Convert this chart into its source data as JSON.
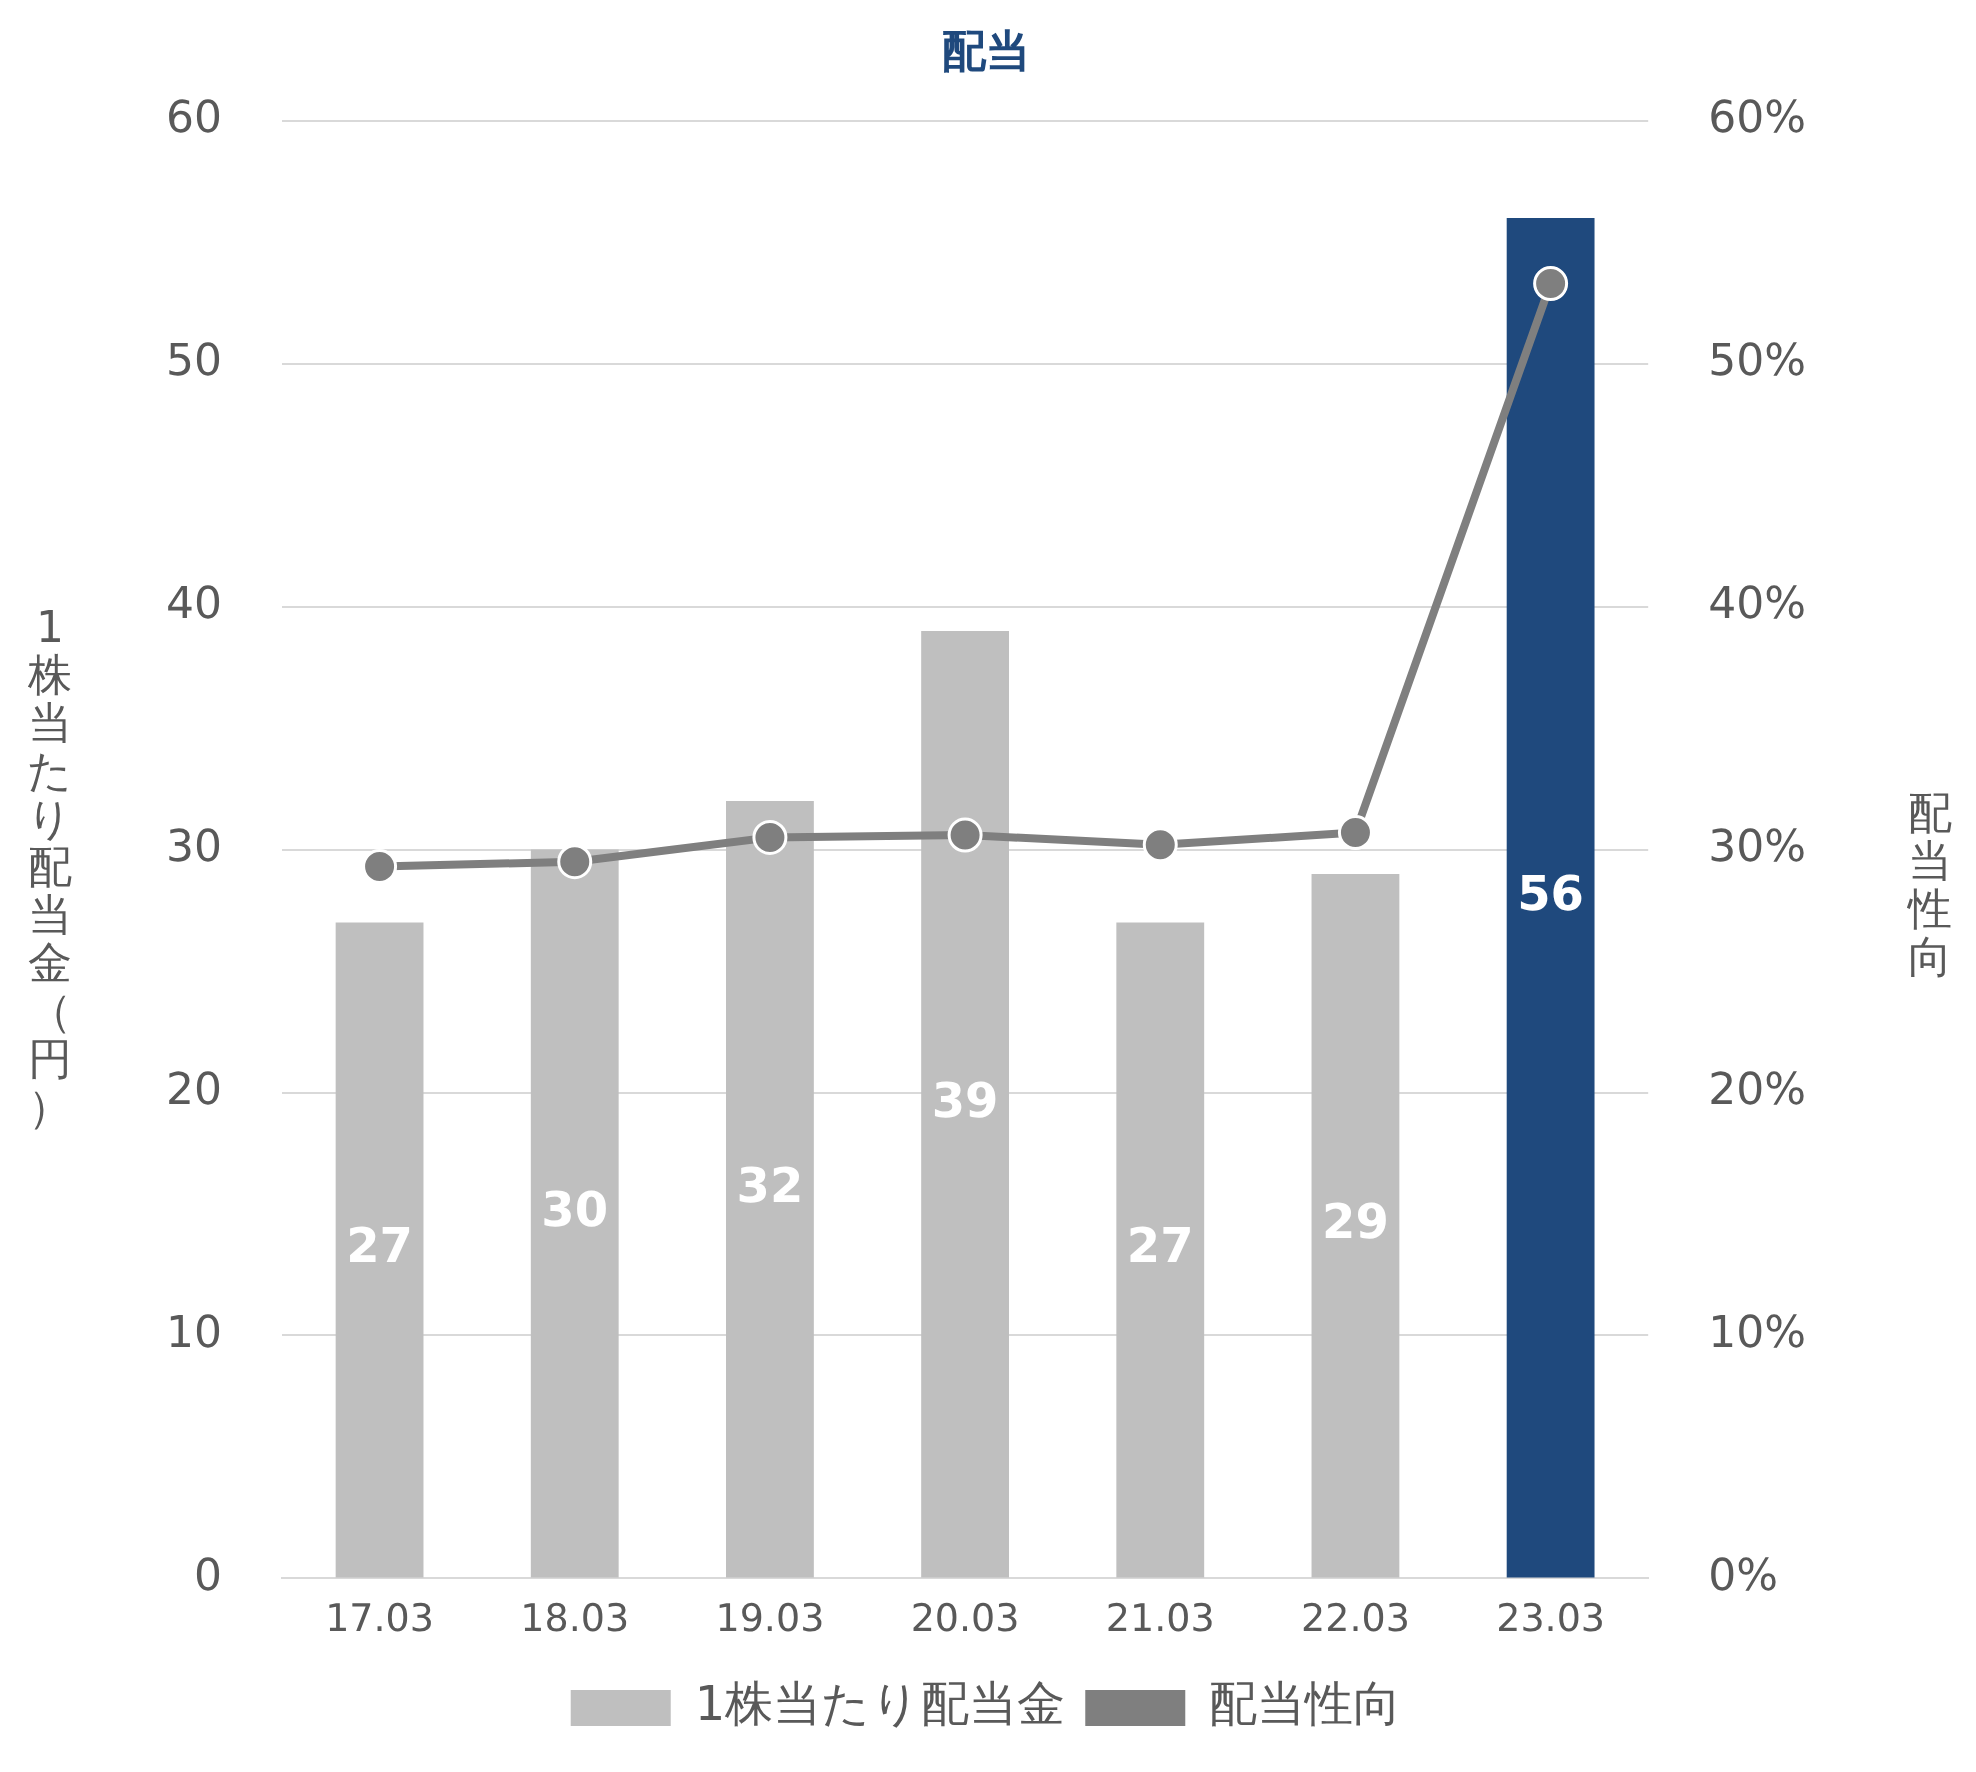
{
  "chart_data": {
    "type": "bar",
    "title": "配当",
    "categories": [
      "17.03",
      "18.03",
      "19.03",
      "20.03",
      "21.03",
      "22.03",
      "23.03"
    ],
    "series": [
      {
        "name": "1株当たり配当金",
        "type": "bar",
        "color": "#bfbfbf",
        "colors": [
          "#bfbfbf",
          "#bfbfbf",
          "#bfbfbf",
          "#bfbfbf",
          "#bfbfbf",
          "#bfbfbf",
          "#1f497d"
        ],
        "values": [
          27,
          30,
          32,
          39,
          27,
          29,
          56
        ],
        "value_labels": [
          "27",
          "30",
          "32",
          "39",
          "27",
          "29",
          "56"
        ]
      },
      {
        "name": "配当性向",
        "type": "line",
        "axis": "y2",
        "color": "#7f7f7f",
        "values": [
          29.3,
          29.5,
          30.5,
          30.6,
          30.2,
          30.7,
          53.3
        ]
      }
    ],
    "ylabel": "1株当たり配当金（円）",
    "y2label": "配当性向",
    "ylim": [
      0,
      60
    ],
    "yticks": [
      0,
      10,
      20,
      30,
      40,
      50,
      60
    ],
    "y2lim": [
      0,
      60
    ],
    "y2ticks": [
      {
        "value": 0,
        "label": "0%"
      },
      {
        "value": 10,
        "label": "10%"
      },
      {
        "value": 20,
        "label": "20%"
      },
      {
        "value": 30,
        "label": "30%"
      },
      {
        "value": 40,
        "label": "40%"
      },
      {
        "value": 50,
        "label": "50%"
      },
      {
        "value": 60,
        "label": "60%"
      }
    ],
    "grid": "y",
    "legend": "bottom",
    "marker": "circle",
    "line_style": "solid"
  }
}
